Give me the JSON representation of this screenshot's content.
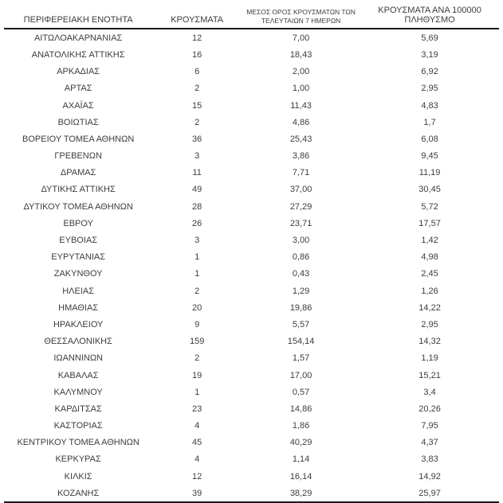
{
  "colors": {
    "background": "#ffffff",
    "text": "#3d3d3d",
    "rule": "#1a1a1a"
  },
  "table": {
    "columns": [
      {
        "label": "ΠΕΡΙΦΕΡΕΙΑΚΗ ΕΝΟΤΗΤΑ"
      },
      {
        "label": "ΚΡΟΥΣΜΑΤΑ"
      },
      {
        "label_line1": "ΜΕΣΟΣ ΟΡΟΣ ΚΡΟΥΣΜΑΤΩΝ ΤΩΝ",
        "label_line2": "ΤΕΛΕΥΤΑΙΩΝ 7 ΗΜΕΡΩΝ"
      },
      {
        "label": "ΚΡΟΥΣΜΑΤΑ ΑΝΑ 100000 ΠΛΗΘΥΣΜΟ"
      }
    ],
    "rows": [
      {
        "region": "ΑΙΤΩΛΟΑΚΑΡΝΑΝΙΑΣ",
        "cases": "12",
        "avg_7day": "7,00",
        "per_100k": "5,69"
      },
      {
        "region": "ΑΝΑΤΟΛΙΚΗΣ ΑΤΤΙΚΗΣ",
        "cases": "16",
        "avg_7day": "18,43",
        "per_100k": "3,19"
      },
      {
        "region": "ΑΡΚΑΔΙΑΣ",
        "cases": "6",
        "avg_7day": "2,00",
        "per_100k": "6,92"
      },
      {
        "region": "ΑΡΤΑΣ",
        "cases": "2",
        "avg_7day": "1,00",
        "per_100k": "2,95"
      },
      {
        "region": "ΑΧΑΪΑΣ",
        "cases": "15",
        "avg_7day": "11,43",
        "per_100k": "4,83"
      },
      {
        "region": "ΒΟΙΩΤΙΑΣ",
        "cases": "2",
        "avg_7day": "4,86",
        "per_100k": "1,7"
      },
      {
        "region": "ΒΟΡΕΙΟΥ ΤΟΜΕΑ ΑΘΗΝΩΝ",
        "cases": "36",
        "avg_7day": "25,43",
        "per_100k": "6,08"
      },
      {
        "region": "ΓΡΕΒΕΝΩΝ",
        "cases": "3",
        "avg_7day": "3,86",
        "per_100k": "9,45"
      },
      {
        "region": "ΔΡΑΜΑΣ",
        "cases": "11",
        "avg_7day": "7,71",
        "per_100k": "11,19"
      },
      {
        "region": "ΔΥΤΙΚΗΣ ΑΤΤΙΚΗΣ",
        "cases": "49",
        "avg_7day": "37,00",
        "per_100k": "30,45"
      },
      {
        "region": "ΔΥΤΙΚΟΥ ΤΟΜΕΑ ΑΘΗΝΩΝ",
        "cases": "28",
        "avg_7day": "27,29",
        "per_100k": "5,72"
      },
      {
        "region": "ΕΒΡΟΥ",
        "cases": "26",
        "avg_7day": "23,71",
        "per_100k": "17,57"
      },
      {
        "region": "ΕΥΒΟΙΑΣ",
        "cases": "3",
        "avg_7day": "3,00",
        "per_100k": "1,42"
      },
      {
        "region": "ΕΥΡΥΤΑΝΙΑΣ",
        "cases": "1",
        "avg_7day": "0,86",
        "per_100k": "4,98"
      },
      {
        "region": "ΖΑΚΥΝΘΟΥ",
        "cases": "1",
        "avg_7day": "0,43",
        "per_100k": "2,45"
      },
      {
        "region": "ΗΛΕΙΑΣ",
        "cases": "2",
        "avg_7day": "1,29",
        "per_100k": "1,26"
      },
      {
        "region": "ΗΜΑΘΙΑΣ",
        "cases": "20",
        "avg_7day": "19,86",
        "per_100k": "14,22"
      },
      {
        "region": "ΗΡΑΚΛΕΙΟΥ",
        "cases": "9",
        "avg_7day": "5,57",
        "per_100k": "2,95"
      },
      {
        "region": "ΘΕΣΣΑΛΟΝΙΚΗΣ",
        "cases": "159",
        "avg_7day": "154,14",
        "per_100k": "14,32"
      },
      {
        "region": "ΙΩΑΝΝΙΝΩΝ",
        "cases": "2",
        "avg_7day": "1,57",
        "per_100k": "1,19"
      },
      {
        "region": "ΚΑΒΑΛΑΣ",
        "cases": "19",
        "avg_7day": "17,00",
        "per_100k": "15,21"
      },
      {
        "region": "ΚΑΛΥΜΝΟΥ",
        "cases": "1",
        "avg_7day": "0,57",
        "per_100k": "3,4"
      },
      {
        "region": "ΚΑΡΔΙΤΣΑΣ",
        "cases": "23",
        "avg_7day": "14,86",
        "per_100k": "20,26"
      },
      {
        "region": "ΚΑΣΤΟΡΙΑΣ",
        "cases": "4",
        "avg_7day": "1,86",
        "per_100k": "7,95"
      },
      {
        "region": "ΚΕΝΤΡΙΚΟΥ ΤΟΜΕΑ ΑΘΗΝΩΝ",
        "cases": "45",
        "avg_7day": "40,29",
        "per_100k": "4,37"
      },
      {
        "region": "ΚΕΡΚΥΡΑΣ",
        "cases": "4",
        "avg_7day": "1,14",
        "per_100k": "3,83"
      },
      {
        "region": "ΚΙΛΚΙΣ",
        "cases": "12",
        "avg_7day": "16,14",
        "per_100k": "14,92"
      },
      {
        "region": "ΚΟΖΑΝΗΣ",
        "cases": "39",
        "avg_7day": "38,29",
        "per_100k": "25,97"
      }
    ]
  }
}
